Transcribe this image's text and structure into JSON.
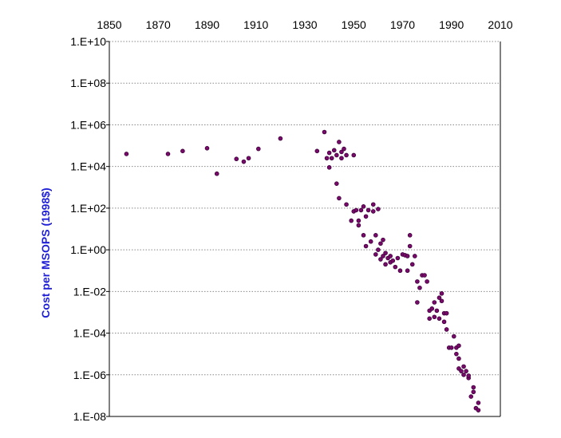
{
  "chart_data": {
    "type": "scatter",
    "title": "",
    "xlabel": "",
    "ylabel": "Cost per MSOPS (1998$)",
    "xlim": [
      1850,
      2010
    ],
    "ylim": [
      1e-08,
      10000000000.0
    ],
    "y_scale": "log",
    "x_axis_position": "top",
    "grid": "horizontal dotted",
    "colors": {
      "marker": "#7a0a6a",
      "marker_edge": "#3a003a",
      "ylabel": "#1f1fd6",
      "grid": "#8a8a8a",
      "axis": "#000000"
    },
    "x_tick_labels": [
      "1850",
      "1870",
      "1890",
      "1910",
      "1930",
      "1950",
      "1970",
      "1990",
      "2010"
    ],
    "y_tick_labels": [
      "1.E+10",
      "1.E+08",
      "1.E+06",
      "1.E+04",
      "1.E+02",
      "1.E+00",
      "1.E-02",
      "1.E-04",
      "1.E-06",
      "1.E-08"
    ],
    "series": [
      {
        "points": [
          [
            1857,
            40000
          ],
          [
            1874,
            40000
          ],
          [
            1880,
            55000
          ],
          [
            1890,
            75000
          ],
          [
            1894,
            4500
          ],
          [
            1902,
            23000
          ],
          [
            1905,
            17000
          ],
          [
            1907,
            25000
          ],
          [
            1911,
            70000
          ],
          [
            1920,
            220000
          ],
          [
            1935,
            55000
          ],
          [
            1938,
            450000
          ],
          [
            1939,
            25000
          ],
          [
            1940,
            45000
          ],
          [
            1940,
            9000
          ],
          [
            1941,
            25000
          ],
          [
            1942,
            60000
          ],
          [
            1943,
            35000
          ],
          [
            1943,
            1500
          ],
          [
            1944,
            150000
          ],
          [
            1944,
            300
          ],
          [
            1945,
            50000
          ],
          [
            1945,
            25000
          ],
          [
            1946,
            70000
          ],
          [
            1947,
            35000
          ],
          [
            1947,
            150
          ],
          [
            1949,
            25
          ],
          [
            1950,
            35000
          ],
          [
            1950,
            70
          ],
          [
            1951,
            80
          ],
          [
            1952,
            25
          ],
          [
            1952,
            15
          ],
          [
            1953,
            80
          ],
          [
            1954,
            120
          ],
          [
            1954,
            5
          ],
          [
            1955,
            40
          ],
          [
            1955,
            1.5
          ],
          [
            1956,
            80
          ],
          [
            1957,
            2.5
          ],
          [
            1958,
            150
          ],
          [
            1958,
            70
          ],
          [
            1959,
            5
          ],
          [
            1959,
            0.6
          ],
          [
            1960,
            90
          ],
          [
            1960,
            1
          ],
          [
            1961,
            2
          ],
          [
            1961,
            0.35
          ],
          [
            1962,
            3
          ],
          [
            1962,
            0.5
          ],
          [
            1963,
            0.7
          ],
          [
            1963,
            0.2
          ],
          [
            1964,
            0.4
          ],
          [
            1965,
            0.25
          ],
          [
            1965,
            0.5
          ],
          [
            1966,
            0.3
          ],
          [
            1967,
            0.15
          ],
          [
            1968,
            0.4
          ],
          [
            1969,
            0.1
          ],
          [
            1970,
            0.6
          ],
          [
            1971,
            0.55
          ],
          [
            1972,
            0.5
          ],
          [
            1972,
            0.1
          ],
          [
            1973,
            5
          ],
          [
            1973,
            1.5
          ],
          [
            1974,
            0.2
          ],
          [
            1975,
            0.5
          ],
          [
            1976,
            0.03
          ],
          [
            1976,
            0.003
          ],
          [
            1977,
            0.015
          ],
          [
            1978,
            0.06
          ],
          [
            1979,
            0.06
          ],
          [
            1980,
            0.03
          ],
          [
            1981,
            0.0012
          ],
          [
            1981,
            0.0005
          ],
          [
            1982,
            0.0015
          ],
          [
            1983,
            0.0006
          ],
          [
            1983,
            0.003
          ],
          [
            1984,
            0.0012
          ],
          [
            1985,
            0.0005
          ],
          [
            1985,
            0.005
          ],
          [
            1986,
            0.008
          ],
          [
            1986,
            0.0035
          ],
          [
            1987,
            0.0009
          ],
          [
            1987,
            0.00035
          ],
          [
            1988,
            0.00015
          ],
          [
            1988,
            0.0009
          ],
          [
            1989,
            2e-05
          ],
          [
            1990,
            2e-05
          ],
          [
            1991,
            7e-05
          ],
          [
            1992,
            1e-05
          ],
          [
            1992,
            2e-05
          ],
          [
            1993,
            6e-06
          ],
          [
            1993,
            2e-06
          ],
          [
            1993,
            2.5e-05
          ],
          [
            1994,
            1.5e-06
          ],
          [
            1995,
            1e-06
          ],
          [
            1995,
            2.5e-06
          ],
          [
            1996,
            1.5e-06
          ],
          [
            1997,
            7e-07
          ],
          [
            1997,
            9e-07
          ],
          [
            1998,
            9e-08
          ],
          [
            1999,
            1.5e-07
          ],
          [
            1999,
            2.5e-07
          ],
          [
            2000,
            2.5e-08
          ],
          [
            2001,
            2e-08
          ],
          [
            2001,
            4.5e-08
          ]
        ]
      }
    ]
  }
}
